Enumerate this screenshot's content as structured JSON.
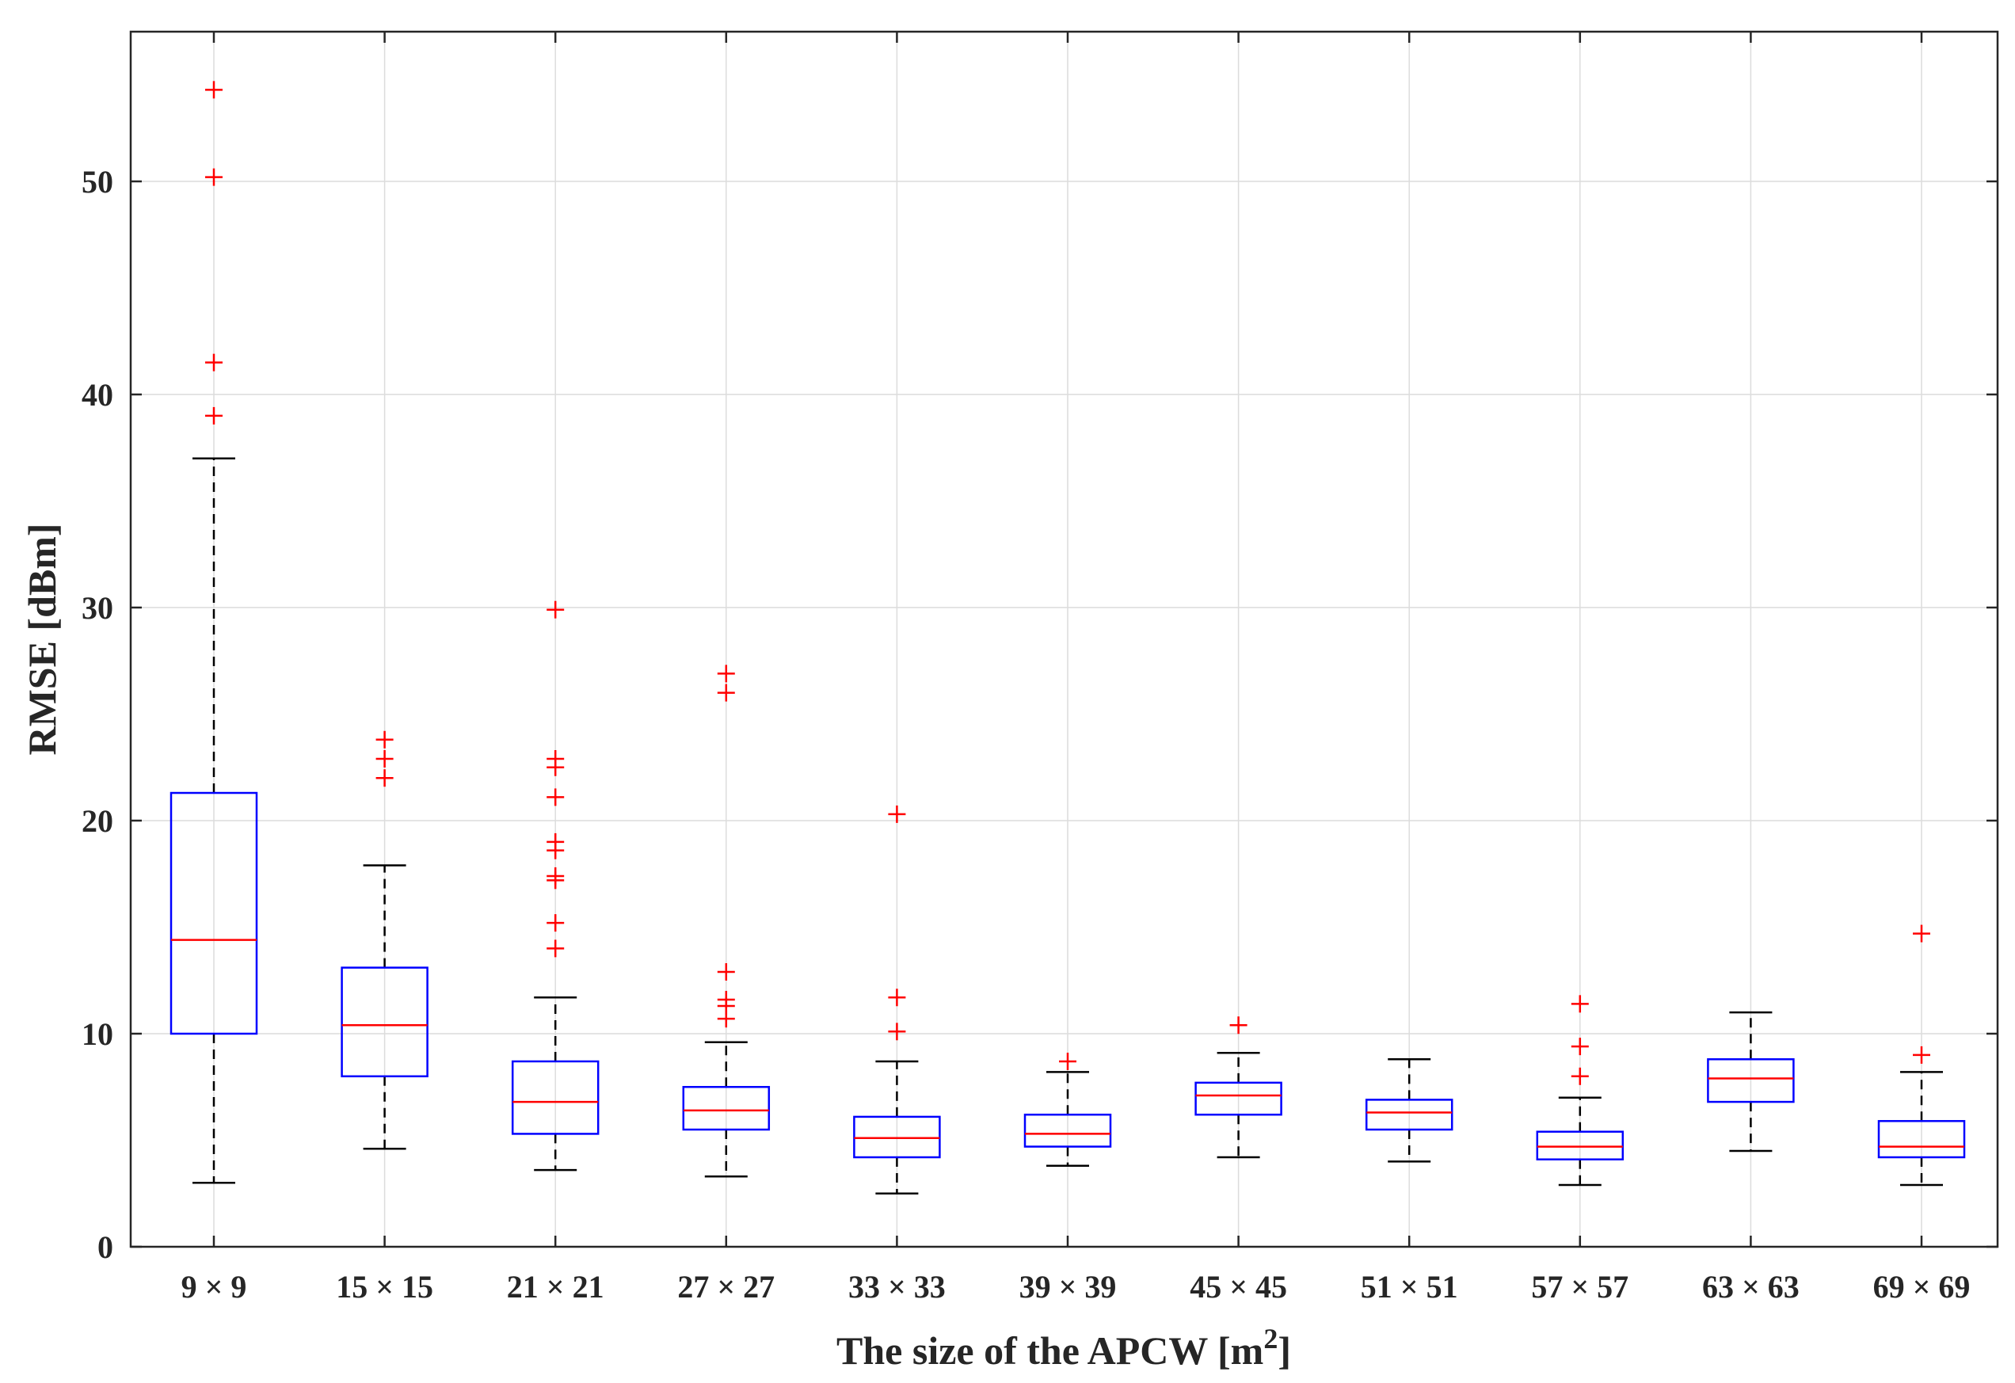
{
  "chart_data": {
    "type": "box",
    "title": "",
    "xlabel": "The size of the APCW [m",
    "xlabel_superscript": "2",
    "xlabel_close": "]",
    "ylabel": "RMSE [dBm]",
    "ylim": [
      0,
      58
    ],
    "yticks": [
      0,
      10,
      20,
      30,
      40,
      50
    ],
    "grid": true,
    "colors": {
      "box": "#0000ff",
      "median": "#ff0000",
      "whisker": "#000000",
      "outlier": "#ff0000"
    },
    "categories": [
      "9 × 9",
      "15 × 15",
      "21 × 21",
      "27 × 27",
      "33 × 33",
      "39 × 39",
      "45 × 45",
      "51 × 51",
      "57 × 57",
      "63 × 63",
      "69 × 69"
    ],
    "boxes": [
      {
        "min": 3.0,
        "q1": 10.0,
        "median": 14.4,
        "q3": 21.3,
        "max": 37.0,
        "outliers": [
          54.3,
          50.2,
          41.5,
          39.0
        ]
      },
      {
        "min": 4.6,
        "q1": 8.0,
        "median": 10.4,
        "q3": 13.1,
        "max": 17.9,
        "outliers": [
          23.8,
          22.9,
          22.0
        ]
      },
      {
        "min": 3.6,
        "q1": 5.3,
        "median": 6.8,
        "q3": 8.7,
        "max": 11.7,
        "outliers": [
          29.9,
          22.9,
          22.5,
          21.1,
          19.0,
          18.6,
          17.4,
          17.2,
          15.2,
          14.0
        ]
      },
      {
        "min": 3.3,
        "q1": 5.5,
        "median": 6.4,
        "q3": 7.5,
        "max": 9.6,
        "outliers": [
          26.9,
          26.0,
          12.9,
          11.6,
          11.3,
          10.7
        ]
      },
      {
        "min": 2.5,
        "q1": 4.2,
        "median": 5.1,
        "q3": 6.1,
        "max": 8.7,
        "outliers": [
          20.3,
          11.7,
          10.1
        ]
      },
      {
        "min": 3.8,
        "q1": 4.7,
        "median": 5.3,
        "q3": 6.2,
        "max": 8.2,
        "outliers": [
          8.7
        ]
      },
      {
        "min": 4.2,
        "q1": 6.2,
        "median": 7.1,
        "q3": 7.7,
        "max": 9.1,
        "outliers": [
          10.4
        ]
      },
      {
        "min": 4.0,
        "q1": 5.5,
        "median": 6.3,
        "q3": 6.9,
        "max": 8.8,
        "outliers": []
      },
      {
        "min": 2.9,
        "q1": 4.1,
        "median": 4.7,
        "q3": 5.4,
        "max": 7.0,
        "outliers": [
          11.4,
          9.4,
          8.0
        ]
      },
      {
        "min": 4.5,
        "q1": 6.8,
        "median": 7.9,
        "q3": 8.8,
        "max": 11.0,
        "outliers": []
      },
      {
        "min": 2.9,
        "q1": 4.2,
        "median": 4.7,
        "q3": 5.9,
        "max": 8.2,
        "outliers": [
          14.7,
          9.0
        ]
      }
    ]
  }
}
